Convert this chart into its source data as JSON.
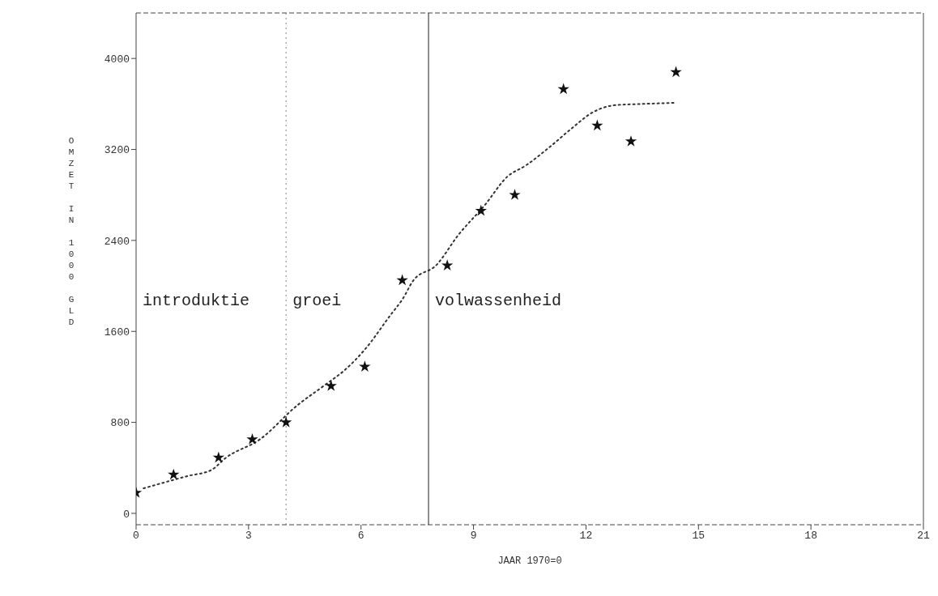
{
  "chart_data": {
    "type": "scatter",
    "xlabel": "JAAR  1970=0",
    "ylabel": "OMZET IN 1000 GLD",
    "xlim": [
      0,
      21
    ],
    "xticks": [
      0,
      3,
      6,
      9,
      12,
      15,
      18,
      21
    ],
    "ylim": [
      -100,
      4400
    ],
    "yticks": [
      0,
      800,
      1600,
      2400,
      3200,
      4000
    ],
    "grid": false,
    "legend": false,
    "series": [
      {
        "color": "#111111",
        "marker": "star",
        "x": [
          0,
          1,
          2.2,
          3.1,
          4,
          5.2,
          6.1,
          7.1,
          8.3,
          9.2,
          10.1,
          11.4,
          12.3,
          13.2,
          14.4
        ],
        "values": [
          180,
          340,
          490,
          650,
          800,
          1120,
          1290,
          2050,
          2180,
          2660,
          2800,
          3730,
          3410,
          3270,
          3880
        ]
      },
      {
        "type": "line",
        "color": "#333333",
        "marker": "none",
        "line_style": "dotted",
        "x": [
          0.2,
          1.4,
          2,
          2.4,
          3.3,
          4.3,
          5,
          5.6,
          6.1,
          6.8,
          7.1,
          7.4,
          8,
          8.6,
          9.3,
          9.9,
          10.4,
          11.1,
          11.6,
          12.2,
          12.8,
          13.5,
          14.4
        ],
        "values": [
          220,
          330,
          380,
          490,
          650,
          950,
          1120,
          1270,
          1440,
          1750,
          1880,
          2050,
          2180,
          2450,
          2710,
          2960,
          3060,
          3240,
          3380,
          3530,
          3590,
          3600,
          3610
        ]
      }
    ],
    "ref_lines": [
      {
        "axis": "x",
        "value": 4,
        "color": "#888888",
        "line_style": "dotted"
      },
      {
        "axis": "x",
        "value": 7.8,
        "color": "#222222",
        "line_style": "solid"
      }
    ],
    "annotations": [
      "introduktie",
      "groei",
      "volwassenheid"
    ]
  }
}
